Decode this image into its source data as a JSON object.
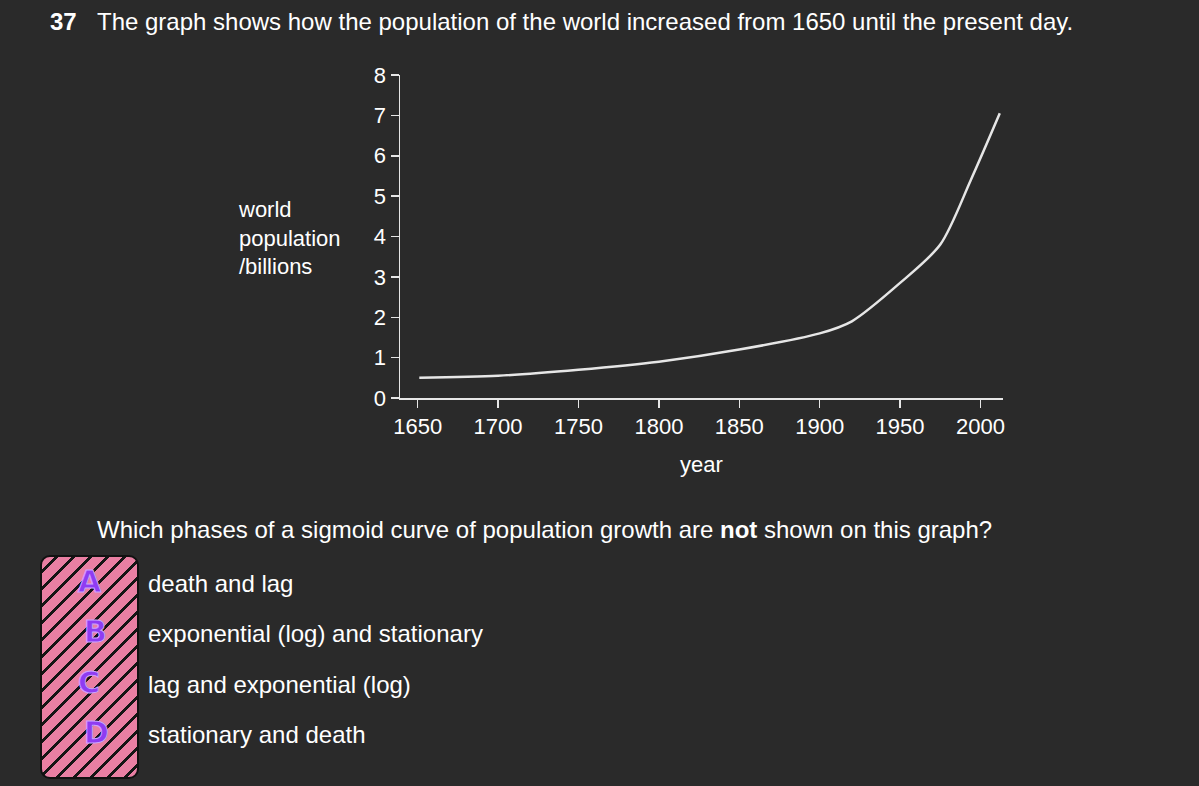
{
  "question": {
    "number": "37",
    "intro": "The graph shows how the population of the world increased from 1650 until the present day.",
    "prompt": {
      "before": "Which phases of a sigmoid curve of population growth are ",
      "emphasis": "not",
      "after": " shown on this graph?"
    },
    "options": [
      {
        "letter": "A",
        "text": "death and lag"
      },
      {
        "letter": "B",
        "text": "exponential (log) and stationary"
      },
      {
        "letter": "C",
        "text": "lag and exponential (log)"
      },
      {
        "letter": "D",
        "text": "stationary and death"
      }
    ]
  },
  "chart_data": {
    "type": "line",
    "x_label": "year",
    "y_label": "world population /billions",
    "x": [
      1651,
      1700,
      1750,
      1800,
      1850,
      1900,
      1920,
      1950,
      1975,
      1994,
      2012
    ],
    "values": [
      0.5,
      0.55,
      0.7,
      0.9,
      1.2,
      1.6,
      1.9,
      2.85,
      3.8,
      5.4,
      7.05
    ],
    "color": "#e6e6e6",
    "xlim": [
      1639,
      2014
    ],
    "ylim": [
      0,
      8
    ],
    "xticks": [
      1650,
      1700,
      1750,
      1800,
      1850,
      1900,
      1950,
      2000
    ],
    "yticks": [
      0,
      1,
      2,
      3,
      4,
      5,
      6,
      7,
      8
    ],
    "grid": false
  }
}
